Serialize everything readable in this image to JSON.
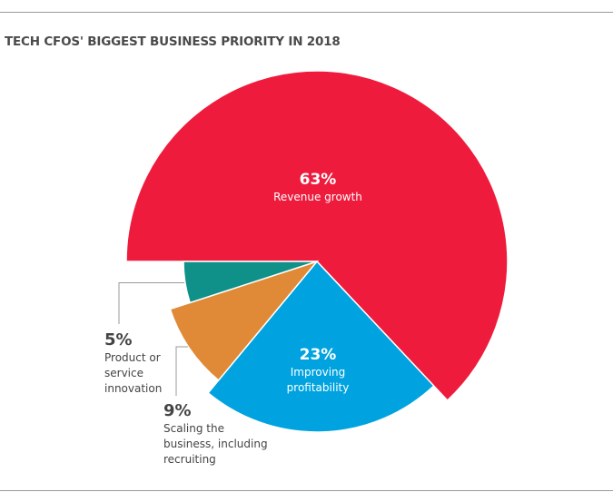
{
  "chart_data": {
    "type": "pie",
    "title": "TECH CFOS' BIGGEST BUSINESS PRIORITY IN 2018",
    "slices": [
      {
        "label": "Revenue growth",
        "value": 63,
        "value_label": "63%",
        "color": "#EE1B3C"
      },
      {
        "label": "Improving profitability",
        "value": 23,
        "value_label": "23%",
        "color": "#00A3DF"
      },
      {
        "label": "Scaling the business, including recruiting",
        "value": 9,
        "value_label": "9%",
        "color": "#E08A37"
      },
      {
        "label": "Product or service innovation",
        "value": 5,
        "value_label": "5%",
        "color": "#0F9088"
      }
    ]
  }
}
